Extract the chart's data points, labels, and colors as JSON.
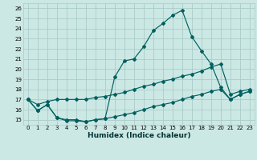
{
  "xlabel": "Humidex (Indice chaleur)",
  "background_color": "#cce8e4",
  "grid_color": "#aaccc8",
  "line_color": "#006060",
  "xlim": [
    -0.5,
    23.5
  ],
  "ylim": [
    14.5,
    26.5
  ],
  "xticks": [
    0,
    1,
    2,
    3,
    4,
    5,
    6,
    7,
    8,
    9,
    10,
    11,
    12,
    13,
    14,
    15,
    16,
    17,
    18,
    19,
    20,
    21,
    22,
    23
  ],
  "yticks": [
    15,
    16,
    17,
    18,
    19,
    20,
    21,
    22,
    23,
    24,
    25,
    26
  ],
  "series1_x": [
    0,
    1,
    2,
    3,
    4,
    5,
    6,
    7,
    8,
    9,
    10,
    11,
    12,
    13,
    14,
    15,
    16,
    17,
    18,
    19,
    20,
    21,
    22,
    23
  ],
  "series1_y": [
    17.0,
    15.9,
    16.5,
    15.2,
    15.0,
    15.0,
    14.8,
    15.0,
    15.1,
    19.2,
    20.8,
    21.0,
    22.2,
    23.8,
    24.5,
    25.3,
    25.8,
    23.2,
    21.8,
    20.5,
    18.2,
    17.0,
    17.5,
    17.8
  ],
  "series2_x": [
    0,
    1,
    2,
    3,
    4,
    5,
    6,
    7,
    8,
    9,
    10,
    11,
    12,
    13,
    14,
    15,
    16,
    17,
    18,
    19,
    20,
    21,
    22,
    23
  ],
  "series2_y": [
    17.0,
    16.5,
    16.8,
    17.0,
    17.0,
    17.0,
    17.0,
    17.2,
    17.3,
    17.5,
    17.7,
    18.0,
    18.3,
    18.5,
    18.8,
    19.0,
    19.3,
    19.5,
    19.8,
    20.2,
    20.5,
    17.5,
    17.8,
    18.0
  ],
  "series3_x": [
    0,
    1,
    2,
    3,
    4,
    5,
    6,
    7,
    8,
    9,
    10,
    11,
    12,
    13,
    14,
    15,
    16,
    17,
    18,
    19,
    20,
    21,
    22,
    23
  ],
  "series3_y": [
    17.0,
    15.9,
    16.5,
    15.2,
    14.9,
    14.9,
    14.8,
    15.0,
    15.1,
    15.3,
    15.5,
    15.7,
    16.0,
    16.3,
    16.5,
    16.7,
    17.0,
    17.3,
    17.5,
    17.8,
    18.0,
    17.0,
    17.5,
    17.8
  ]
}
